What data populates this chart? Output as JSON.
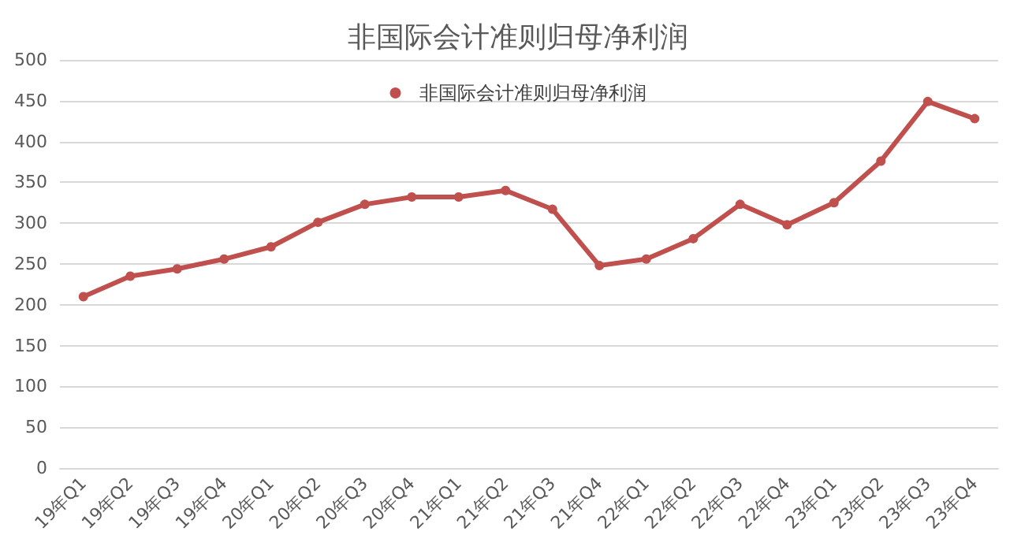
{
  "chart_data": {
    "type": "line",
    "title": "非国际会计准则归母净利润",
    "categories": [
      "19年Q1",
      "19年Q2",
      "19年Q3",
      "19年Q4",
      "20年Q1",
      "20年Q2",
      "20年Q3",
      "20年Q4",
      "21年Q1",
      "21年Q2",
      "21年Q3",
      "21年Q4",
      "22年Q1",
      "22年Q2",
      "22年Q3",
      "22年Q4",
      "23年Q1",
      "23年Q2",
      "23年Q3",
      "23年Q4"
    ],
    "series": [
      {
        "name": "非国际会计准则归母净利润",
        "color": "#c0504d",
        "values": [
          210,
          235,
          244,
          256,
          271,
          301,
          323,
          332,
          332,
          340,
          317,
          248,
          256,
          281,
          323,
          298,
          325,
          376,
          449,
          428
        ]
      }
    ],
    "ylim": [
      0,
      500
    ],
    "yticks": [
      0,
      50,
      100,
      150,
      200,
      250,
      300,
      350,
      400,
      450,
      500
    ],
    "grid": "y",
    "legend": "top",
    "marker": "circle",
    "line_style": "solid"
  }
}
